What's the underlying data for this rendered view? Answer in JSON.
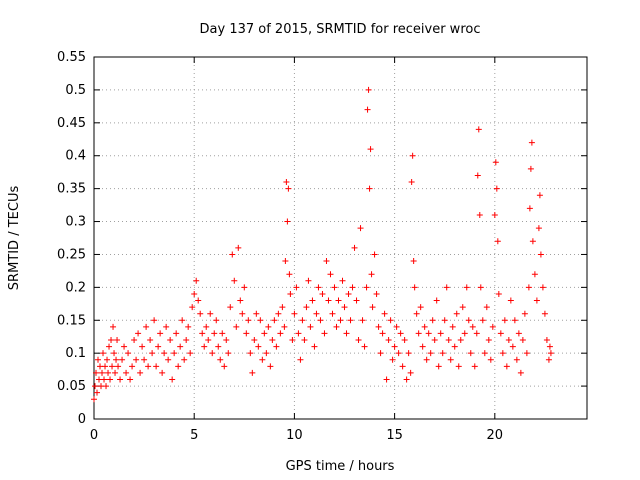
{
  "chart_data": {
    "type": "scatter",
    "title": "Day 137 of 2015, SRMTID for receiver wroc",
    "xlabel": "GPS time / hours",
    "ylabel": "SRMTID / TECUs",
    "xlim": [
      0,
      24.6
    ],
    "ylim": [
      0,
      0.55
    ],
    "xticks": [
      0,
      5,
      10,
      15,
      20
    ],
    "xtick_labels": [
      "0",
      "5",
      "10",
      "15",
      "20"
    ],
    "yticks": [
      0,
      0.05,
      0.1,
      0.15,
      0.2,
      0.25,
      0.3,
      0.35,
      0.4,
      0.45,
      0.5,
      0.55
    ],
    "ytick_labels": [
      "0",
      "0.05",
      "0.1",
      "0.15",
      "0.2",
      "0.25",
      "0.3",
      "0.35",
      "0.4",
      "0.45",
      "0.5",
      "0.55"
    ],
    "grid": true,
    "marker": "+",
    "color": "#ff0000",
    "series": [
      {
        "name": "SRMTID",
        "points": [
          [
            0.0,
            0.03
          ],
          [
            0.05,
            0.05
          ],
          [
            0.1,
            0.07
          ],
          [
            0.15,
            0.04
          ],
          [
            0.2,
            0.09
          ],
          [
            0.25,
            0.06
          ],
          [
            0.3,
            0.08
          ],
          [
            0.35,
            0.05
          ],
          [
            0.4,
            0.07
          ],
          [
            0.45,
            0.1
          ],
          [
            0.5,
            0.06
          ],
          [
            0.55,
            0.08
          ],
          [
            0.6,
            0.05
          ],
          [
            0.65,
            0.09
          ],
          [
            0.7,
            0.07
          ],
          [
            0.75,
            0.11
          ],
          [
            0.8,
            0.06
          ],
          [
            0.85,
            0.12
          ],
          [
            0.9,
            0.08
          ],
          [
            0.95,
            0.14
          ],
          [
            1.0,
            0.1
          ],
          [
            1.05,
            0.07
          ],
          [
            1.1,
            0.09
          ],
          [
            1.15,
            0.12
          ],
          [
            1.2,
            0.08
          ],
          [
            1.3,
            0.06
          ],
          [
            1.4,
            0.09
          ],
          [
            1.5,
            0.11
          ],
          [
            1.6,
            0.07
          ],
          [
            1.7,
            0.1
          ],
          [
            1.8,
            0.06
          ],
          [
            1.9,
            0.08
          ],
          [
            2.0,
            0.12
          ],
          [
            2.1,
            0.09
          ],
          [
            2.2,
            0.13
          ],
          [
            2.3,
            0.07
          ],
          [
            2.4,
            0.11
          ],
          [
            2.5,
            0.09
          ],
          [
            2.6,
            0.14
          ],
          [
            2.7,
            0.08
          ],
          [
            2.8,
            0.12
          ],
          [
            2.9,
            0.1
          ],
          [
            3.0,
            0.15
          ],
          [
            3.1,
            0.08
          ],
          [
            3.2,
            0.11
          ],
          [
            3.3,
            0.13
          ],
          [
            3.4,
            0.07
          ],
          [
            3.5,
            0.1
          ],
          [
            3.6,
            0.14
          ],
          [
            3.7,
            0.09
          ],
          [
            3.8,
            0.12
          ],
          [
            3.9,
            0.06
          ],
          [
            4.0,
            0.1
          ],
          [
            4.1,
            0.13
          ],
          [
            4.2,
            0.08
          ],
          [
            4.3,
            0.11
          ],
          [
            4.4,
            0.15
          ],
          [
            4.5,
            0.09
          ],
          [
            4.6,
            0.12
          ],
          [
            4.7,
            0.14
          ],
          [
            4.8,
            0.1
          ],
          [
            4.9,
            0.17
          ],
          [
            5.0,
            0.19
          ],
          [
            5.1,
            0.21
          ],
          [
            5.2,
            0.18
          ],
          [
            5.3,
            0.16
          ],
          [
            5.4,
            0.13
          ],
          [
            5.5,
            0.11
          ],
          [
            5.6,
            0.14
          ],
          [
            5.7,
            0.12
          ],
          [
            5.8,
            0.16
          ],
          [
            5.9,
            0.1
          ],
          [
            6.0,
            0.13
          ],
          [
            6.1,
            0.15
          ],
          [
            6.2,
            0.11
          ],
          [
            6.3,
            0.09
          ],
          [
            6.4,
            0.13
          ],
          [
            6.5,
            0.08
          ],
          [
            6.6,
            0.12
          ],
          [
            6.7,
            0.1
          ],
          [
            6.8,
            0.17
          ],
          [
            6.9,
            0.25
          ],
          [
            7.0,
            0.21
          ],
          [
            7.1,
            0.14
          ],
          [
            7.2,
            0.26
          ],
          [
            7.3,
            0.18
          ],
          [
            7.4,
            0.16
          ],
          [
            7.5,
            0.2
          ],
          [
            7.6,
            0.13
          ],
          [
            7.7,
            0.15
          ],
          [
            7.8,
            0.1
          ],
          [
            7.9,
            0.07
          ],
          [
            8.0,
            0.12
          ],
          [
            8.1,
            0.16
          ],
          [
            8.2,
            0.11
          ],
          [
            8.3,
            0.15
          ],
          [
            8.4,
            0.09
          ],
          [
            8.5,
            0.13
          ],
          [
            8.6,
            0.1
          ],
          [
            8.7,
            0.14
          ],
          [
            8.8,
            0.08
          ],
          [
            8.9,
            0.12
          ],
          [
            9.0,
            0.15
          ],
          [
            9.1,
            0.11
          ],
          [
            9.2,
            0.16
          ],
          [
            9.3,
            0.13
          ],
          [
            9.4,
            0.17
          ],
          [
            9.5,
            0.14
          ],
          [
            9.55,
            0.24
          ],
          [
            9.6,
            0.36
          ],
          [
            9.65,
            0.3
          ],
          [
            9.7,
            0.35
          ],
          [
            9.75,
            0.22
          ],
          [
            9.8,
            0.19
          ],
          [
            9.9,
            0.12
          ],
          [
            10.0,
            0.16
          ],
          [
            10.1,
            0.2
          ],
          [
            10.2,
            0.13
          ],
          [
            10.3,
            0.09
          ],
          [
            10.4,
            0.15
          ],
          [
            10.5,
            0.12
          ],
          [
            10.6,
            0.17
          ],
          [
            10.7,
            0.21
          ],
          [
            10.8,
            0.14
          ],
          [
            10.9,
            0.18
          ],
          [
            11.0,
            0.11
          ],
          [
            11.1,
            0.16
          ],
          [
            11.2,
            0.2
          ],
          [
            11.3,
            0.15
          ],
          [
            11.4,
            0.19
          ],
          [
            11.5,
            0.13
          ],
          [
            11.6,
            0.24
          ],
          [
            11.7,
            0.18
          ],
          [
            11.8,
            0.22
          ],
          [
            11.9,
            0.16
          ],
          [
            12.0,
            0.2
          ],
          [
            12.1,
            0.14
          ],
          [
            12.2,
            0.18
          ],
          [
            12.3,
            0.15
          ],
          [
            12.4,
            0.21
          ],
          [
            12.5,
            0.17
          ],
          [
            12.6,
            0.13
          ],
          [
            12.7,
            0.19
          ],
          [
            12.8,
            0.15
          ],
          [
            12.9,
            0.2
          ],
          [
            13.0,
            0.26
          ],
          [
            13.1,
            0.18
          ],
          [
            13.2,
            0.12
          ],
          [
            13.3,
            0.29
          ],
          [
            13.4,
            0.15
          ],
          [
            13.5,
            0.11
          ],
          [
            13.6,
            0.2
          ],
          [
            13.65,
            0.47
          ],
          [
            13.7,
            0.5
          ],
          [
            13.75,
            0.35
          ],
          [
            13.8,
            0.41
          ],
          [
            13.85,
            0.22
          ],
          [
            13.9,
            0.17
          ],
          [
            14.0,
            0.25
          ],
          [
            14.1,
            0.19
          ],
          [
            14.2,
            0.14
          ],
          [
            14.3,
            0.1
          ],
          [
            14.4,
            0.13
          ],
          [
            14.5,
            0.16
          ],
          [
            14.6,
            0.06
          ],
          [
            14.7,
            0.12
          ],
          [
            14.8,
            0.15
          ],
          [
            14.9,
            0.09
          ],
          [
            15.0,
            0.11
          ],
          [
            15.1,
            0.14
          ],
          [
            15.2,
            0.1
          ],
          [
            15.3,
            0.13
          ],
          [
            15.4,
            0.08
          ],
          [
            15.5,
            0.12
          ],
          [
            15.6,
            0.06
          ],
          [
            15.7,
            0.1
          ],
          [
            15.8,
            0.07
          ],
          [
            15.85,
            0.36
          ],
          [
            15.9,
            0.4
          ],
          [
            15.95,
            0.24
          ],
          [
            16.0,
            0.2
          ],
          [
            16.1,
            0.16
          ],
          [
            16.2,
            0.13
          ],
          [
            16.3,
            0.17
          ],
          [
            16.4,
            0.11
          ],
          [
            16.5,
            0.14
          ],
          [
            16.6,
            0.09
          ],
          [
            16.7,
            0.13
          ],
          [
            16.8,
            0.1
          ],
          [
            16.9,
            0.15
          ],
          [
            17.0,
            0.12
          ],
          [
            17.1,
            0.18
          ],
          [
            17.2,
            0.08
          ],
          [
            17.3,
            0.13
          ],
          [
            17.4,
            0.1
          ],
          [
            17.5,
            0.15
          ],
          [
            17.6,
            0.2
          ],
          [
            17.7,
            0.12
          ],
          [
            17.8,
            0.09
          ],
          [
            17.9,
            0.14
          ],
          [
            18.0,
            0.11
          ],
          [
            18.1,
            0.16
          ],
          [
            18.2,
            0.08
          ],
          [
            18.3,
            0.12
          ],
          [
            18.4,
            0.17
          ],
          [
            18.5,
            0.13
          ],
          [
            18.6,
            0.2
          ],
          [
            18.7,
            0.15
          ],
          [
            18.8,
            0.1
          ],
          [
            18.9,
            0.14
          ],
          [
            19.0,
            0.08
          ],
          [
            19.1,
            0.13
          ],
          [
            19.15,
            0.37
          ],
          [
            19.2,
            0.44
          ],
          [
            19.25,
            0.31
          ],
          [
            19.3,
            0.2
          ],
          [
            19.4,
            0.15
          ],
          [
            19.5,
            0.1
          ],
          [
            19.6,
            0.17
          ],
          [
            19.7,
            0.12
          ],
          [
            19.8,
            0.09
          ],
          [
            19.9,
            0.14
          ],
          [
            20.0,
            0.31
          ],
          [
            20.05,
            0.39
          ],
          [
            20.1,
            0.35
          ],
          [
            20.15,
            0.27
          ],
          [
            20.2,
            0.19
          ],
          [
            20.3,
            0.13
          ],
          [
            20.4,
            0.1
          ],
          [
            20.5,
            0.15
          ],
          [
            20.6,
            0.08
          ],
          [
            20.7,
            0.12
          ],
          [
            20.8,
            0.18
          ],
          [
            20.9,
            0.11
          ],
          [
            21.0,
            0.15
          ],
          [
            21.1,
            0.09
          ],
          [
            21.2,
            0.13
          ],
          [
            21.3,
            0.07
          ],
          [
            21.4,
            0.12
          ],
          [
            21.5,
            0.16
          ],
          [
            21.6,
            0.1
          ],
          [
            21.7,
            0.2
          ],
          [
            21.75,
            0.32
          ],
          [
            21.8,
            0.38
          ],
          [
            21.85,
            0.42
          ],
          [
            21.9,
            0.27
          ],
          [
            22.0,
            0.22
          ],
          [
            22.1,
            0.18
          ],
          [
            22.2,
            0.29
          ],
          [
            22.25,
            0.34
          ],
          [
            22.3,
            0.25
          ],
          [
            22.4,
            0.2
          ],
          [
            22.5,
            0.16
          ],
          [
            22.6,
            0.12
          ],
          [
            22.7,
            0.09
          ],
          [
            22.75,
            0.11
          ],
          [
            22.8,
            0.1
          ]
        ]
      }
    ]
  }
}
